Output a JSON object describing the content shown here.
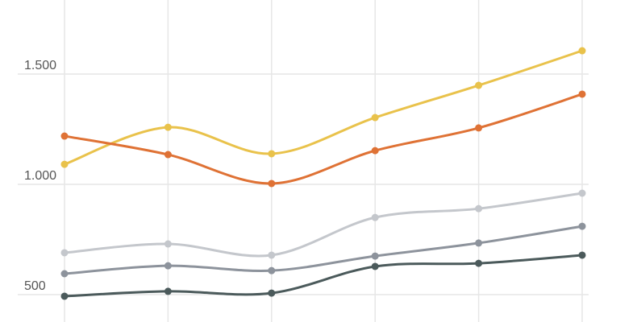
{
  "chart_data": {
    "type": "line",
    "categories": [
      null,
      null,
      null,
      null,
      null,
      null
    ],
    "series": [
      {
        "color": "#e9c24b",
        "values": [
          1091,
          1259,
          1139,
          1303,
          1449,
          1606
        ]
      },
      {
        "color": "#df7235",
        "values": [
          1219,
          1135,
          1004,
          1153,
          1256,
          1409
        ]
      },
      {
        "color": "#c4c7cc",
        "values": [
          690,
          730,
          679,
          850,
          890,
          960
        ]
      },
      {
        "color": "#8d939c",
        "values": [
          595,
          631,
          609,
          675,
          734,
          810
        ]
      },
      {
        "color": "#4b5a5b",
        "values": [
          493,
          515,
          507,
          628,
          642,
          679
        ]
      }
    ],
    "ylim": [
      376,
      1836
    ],
    "yticks": [
      {
        "value": 500,
        "label": "500"
      },
      {
        "value": 1000,
        "label": "1.000"
      },
      {
        "value": 1500,
        "label": "1.500"
      }
    ],
    "grid": true
  }
}
